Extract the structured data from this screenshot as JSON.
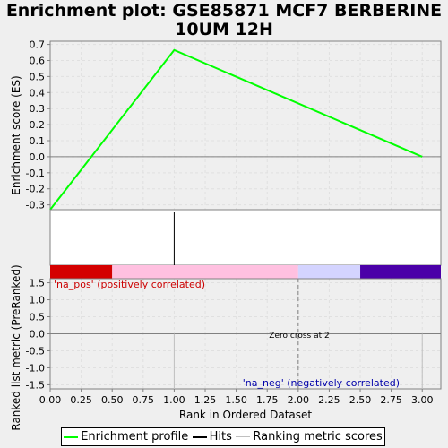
{
  "chart_data": {
    "type": "line",
    "title_line1": "Enrichment plot: GSE85871 MCF7 BERBERINE",
    "title_line2": "10UM 12H",
    "xlabel": "Rank in Ordered Dataset",
    "xlim": [
      0,
      3.15
    ],
    "x_ticks": [
      "0.00",
      "0.25",
      "0.50",
      "0.75",
      "1.00",
      "1.25",
      "1.50",
      "1.75",
      "2.00",
      "2.25",
      "2.50",
      "2.75",
      "3.00"
    ],
    "top_panel": {
      "ylabel": "Enrichment score (ES)",
      "ylim": [
        -0.33,
        0.72
      ],
      "y_ticks": [
        "0.7",
        "0.6",
        "0.5",
        "0.4",
        "0.3",
        "0.2",
        "0.1",
        "0.0",
        "-0.1",
        "-0.2",
        "-0.3"
      ],
      "series": [
        {
          "name": "Enrichment profile",
          "color": "#00ff00",
          "x": [
            0.0,
            1.0,
            3.0
          ],
          "y": [
            -0.33,
            0.665,
            0.0
          ]
        }
      ],
      "zero_line": 0.0
    },
    "hits_panel": {
      "hits_x": [
        1.0
      ]
    },
    "color_bar": [
      {
        "from": 0.0,
        "to": 0.5,
        "color": "#d40000"
      },
      {
        "from": 0.5,
        "to": 2.0,
        "color": "#ffc0e0"
      },
      {
        "from": 2.0,
        "to": 2.5,
        "color": "#d4d4ff"
      },
      {
        "from": 2.5,
        "to": 3.15,
        "color": "#4b00a8"
      }
    ],
    "bottom_panel": {
      "ylabel": "Ranked list metric (PreRanked)",
      "ylim": [
        -1.62,
        1.62
      ],
      "y_ticks": [
        "1.5",
        "1.0",
        "0.5",
        "0.0",
        "-0.5",
        "-1.0",
        "-1.5"
      ],
      "metric_x": [
        1.0,
        3.0
      ],
      "zero_cross_x": 2.0,
      "annotations": {
        "pos": "'na_pos' (positively correlated)",
        "neg": "'na_neg' (negatively correlated)",
        "zero": "Zero cross at 2"
      },
      "pos_color": "#cc0000",
      "neg_color": "#0000aa"
    },
    "legend": [
      {
        "label": "Enrichment profile",
        "color": "#00ff00"
      },
      {
        "label": "Hits",
        "color": "#000000"
      },
      {
        "label": "Ranking metric scores",
        "color": "#c0c0c0"
      }
    ]
  }
}
